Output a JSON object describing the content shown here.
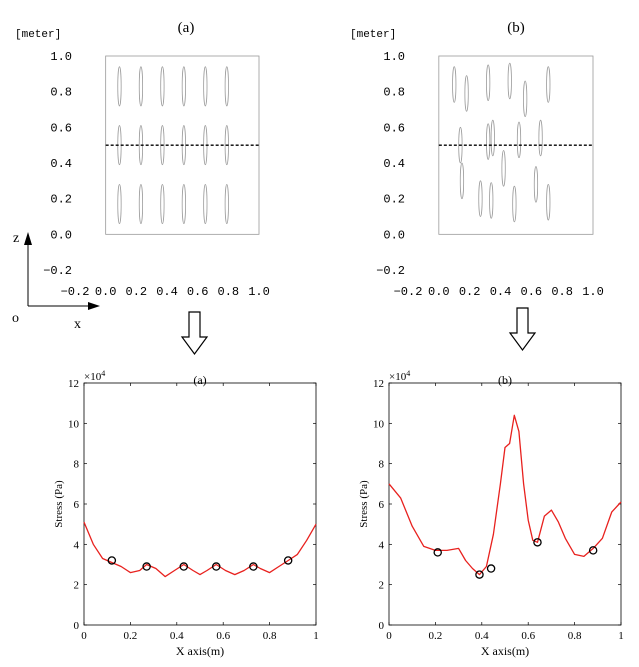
{
  "chart_data": [
    {
      "id": "layout_a",
      "type": "diagram",
      "panel_label": "(a)",
      "unit_label": "[meter]",
      "xlim": [
        -0.2,
        1.0
      ],
      "ylim": [
        -0.2,
        1.0
      ],
      "xticks": [
        "−0.2",
        "0.0",
        "0.2",
        "0.4",
        "0.6",
        "0.8",
        "1.0"
      ],
      "yticks": [
        "1.0",
        "0.8",
        "0.6",
        "0.4",
        "0.2",
        "0.0",
        "−0.2"
      ],
      "domain": {
        "x0": 0.0,
        "x1": 1.0,
        "y0": 0.0,
        "y1": 1.0
      },
      "section_line_z": 0.5,
      "inclusion_size": {
        "w": 0.022,
        "h": 0.22
      },
      "inclusions": [
        {
          "x": 0.09,
          "z": 0.83
        },
        {
          "x": 0.23,
          "z": 0.83
        },
        {
          "x": 0.37,
          "z": 0.83
        },
        {
          "x": 0.51,
          "z": 0.83
        },
        {
          "x": 0.65,
          "z": 0.83
        },
        {
          "x": 0.79,
          "z": 0.83
        },
        {
          "x": 0.09,
          "z": 0.5
        },
        {
          "x": 0.23,
          "z": 0.5
        },
        {
          "x": 0.37,
          "z": 0.5
        },
        {
          "x": 0.51,
          "z": 0.5
        },
        {
          "x": 0.65,
          "z": 0.5
        },
        {
          "x": 0.79,
          "z": 0.5
        },
        {
          "x": 0.09,
          "z": 0.17
        },
        {
          "x": 0.23,
          "z": 0.17
        },
        {
          "x": 0.37,
          "z": 0.17
        },
        {
          "x": 0.51,
          "z": 0.17
        },
        {
          "x": 0.65,
          "z": 0.17
        },
        {
          "x": 0.79,
          "z": 0.17
        }
      ]
    },
    {
      "id": "layout_b",
      "type": "diagram",
      "panel_label": "(b)",
      "unit_label": "[meter]",
      "xlim": [
        -0.2,
        1.0
      ],
      "ylim": [
        -0.2,
        1.0
      ],
      "xticks": [
        "−0.2",
        "0.0",
        "0.2",
        "0.4",
        "0.6",
        "0.8",
        "1.0"
      ],
      "yticks": [
        "1.0",
        "0.8",
        "0.6",
        "0.4",
        "0.2",
        "0.0",
        "−0.2"
      ],
      "domain": {
        "x0": 0.0,
        "x1": 1.0,
        "y0": 0.0,
        "y1": 1.0
      },
      "section_line_z": 0.5,
      "inclusion_size": {
        "w": 0.022,
        "h": 0.2
      },
      "inclusions": [
        {
          "x": 0.1,
          "z": 0.84
        },
        {
          "x": 0.18,
          "z": 0.79
        },
        {
          "x": 0.32,
          "z": 0.85
        },
        {
          "x": 0.46,
          "z": 0.86
        },
        {
          "x": 0.56,
          "z": 0.76
        },
        {
          "x": 0.71,
          "z": 0.84
        },
        {
          "x": 0.14,
          "z": 0.5
        },
        {
          "x": 0.32,
          "z": 0.52
        },
        {
          "x": 0.35,
          "z": 0.54
        },
        {
          "x": 0.52,
          "z": 0.53
        },
        {
          "x": 0.66,
          "z": 0.54
        },
        {
          "x": 0.15,
          "z": 0.3
        },
        {
          "x": 0.27,
          "z": 0.2
        },
        {
          "x": 0.34,
          "z": 0.19
        },
        {
          "x": 0.42,
          "z": 0.37
        },
        {
          "x": 0.49,
          "z": 0.17
        },
        {
          "x": 0.63,
          "z": 0.28
        },
        {
          "x": 0.71,
          "z": 0.18
        }
      ]
    },
    {
      "id": "stress_a",
      "type": "line",
      "title": "(a)",
      "xlabel": "X axis(m)",
      "ylabel": "Stress (Pa)",
      "exponent_label": "×10",
      "exponent_power": "4",
      "xlim": [
        0,
        1
      ],
      "ylim": [
        0,
        12
      ],
      "xticks": [
        0,
        0.2,
        0.4,
        0.6,
        0.8,
        1
      ],
      "yticks": [
        0,
        2,
        4,
        6,
        8,
        10,
        12
      ],
      "line_color": "#e8211e",
      "x": [
        0,
        0.04,
        0.08,
        0.12,
        0.16,
        0.2,
        0.24,
        0.27,
        0.31,
        0.35,
        0.39,
        0.43,
        0.47,
        0.5,
        0.53,
        0.57,
        0.61,
        0.65,
        0.69,
        0.73,
        0.76,
        0.8,
        0.84,
        0.88,
        0.92,
        0.96,
        1.0
      ],
      "y": [
        5.1,
        4.0,
        3.3,
        3.1,
        2.9,
        2.6,
        2.7,
        3.0,
        2.8,
        2.4,
        2.7,
        3.0,
        2.7,
        2.5,
        2.7,
        3.0,
        2.7,
        2.5,
        2.7,
        3.0,
        2.8,
        2.6,
        2.9,
        3.2,
        3.5,
        4.2,
        5.0
      ],
      "markers_x": [
        0.12,
        0.27,
        0.43,
        0.57,
        0.73,
        0.88
      ],
      "markers_y": [
        3.2,
        2.9,
        2.9,
        2.9,
        2.9,
        3.2
      ]
    },
    {
      "id": "stress_b",
      "type": "line",
      "title": "(b)",
      "xlabel": "X axis(m)",
      "ylabel": "Stress (Pa)",
      "exponent_label": "×10",
      "exponent_power": "4",
      "xlim": [
        0,
        1
      ],
      "ylim": [
        0,
        12
      ],
      "xticks": [
        0,
        0.2,
        0.4,
        0.6,
        0.8,
        1
      ],
      "yticks": [
        0,
        2,
        4,
        6,
        8,
        10,
        12
      ],
      "line_color": "#e8211e",
      "x": [
        0,
        0.05,
        0.1,
        0.15,
        0.2,
        0.25,
        0.3,
        0.33,
        0.36,
        0.39,
        0.42,
        0.45,
        0.48,
        0.5,
        0.52,
        0.54,
        0.56,
        0.58,
        0.6,
        0.62,
        0.64,
        0.67,
        0.7,
        0.73,
        0.76,
        0.8,
        0.84,
        0.88,
        0.92,
        0.96,
        1.0
      ],
      "y": [
        7.0,
        6.3,
        4.9,
        3.9,
        3.7,
        3.7,
        3.8,
        3.2,
        2.8,
        2.5,
        2.9,
        4.5,
        7.0,
        8.8,
        9.0,
        10.4,
        9.6,
        7.0,
        5.2,
        4.2,
        4.1,
        5.4,
        5.7,
        5.1,
        4.3,
        3.5,
        3.4,
        3.8,
        4.3,
        5.6,
        6.1
      ],
      "markers_x": [
        0.21,
        0.39,
        0.44,
        0.64,
        0.88
      ],
      "markers_y": [
        3.6,
        2.5,
        2.8,
        4.1,
        3.7
      ]
    }
  ],
  "axes_glyph": {
    "z": "z",
    "o": "o",
    "x": "x"
  }
}
